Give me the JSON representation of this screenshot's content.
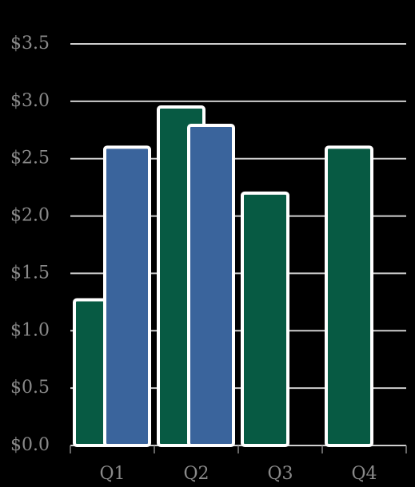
{
  "chart_data": {
    "type": "bar",
    "categories": [
      "Q1",
      "Q2",
      "Q3",
      "Q4"
    ],
    "series": [
      {
        "color": "#075a43",
        "values": [
          1.27,
          2.95,
          2.2,
          2.6
        ]
      },
      {
        "color": "#3a649c",
        "values": [
          2.6,
          2.79,
          null,
          null
        ]
      }
    ],
    "ylim": [
      0,
      3.5
    ],
    "yticks": [
      {
        "value": 0,
        "label": "$0.0"
      },
      {
        "value": 0.5,
        "label": "$0.5"
      },
      {
        "value": 1,
        "label": "$1.0"
      },
      {
        "value": 1.5,
        "label": "$1.5"
      },
      {
        "value": 2,
        "label": "$2.0"
      },
      {
        "value": 2.5,
        "label": "$2.5"
      },
      {
        "value": 3,
        "label": "$3.0"
      },
      {
        "value": 3.5,
        "label": "$3.5"
      }
    ],
    "grid": true
  }
}
